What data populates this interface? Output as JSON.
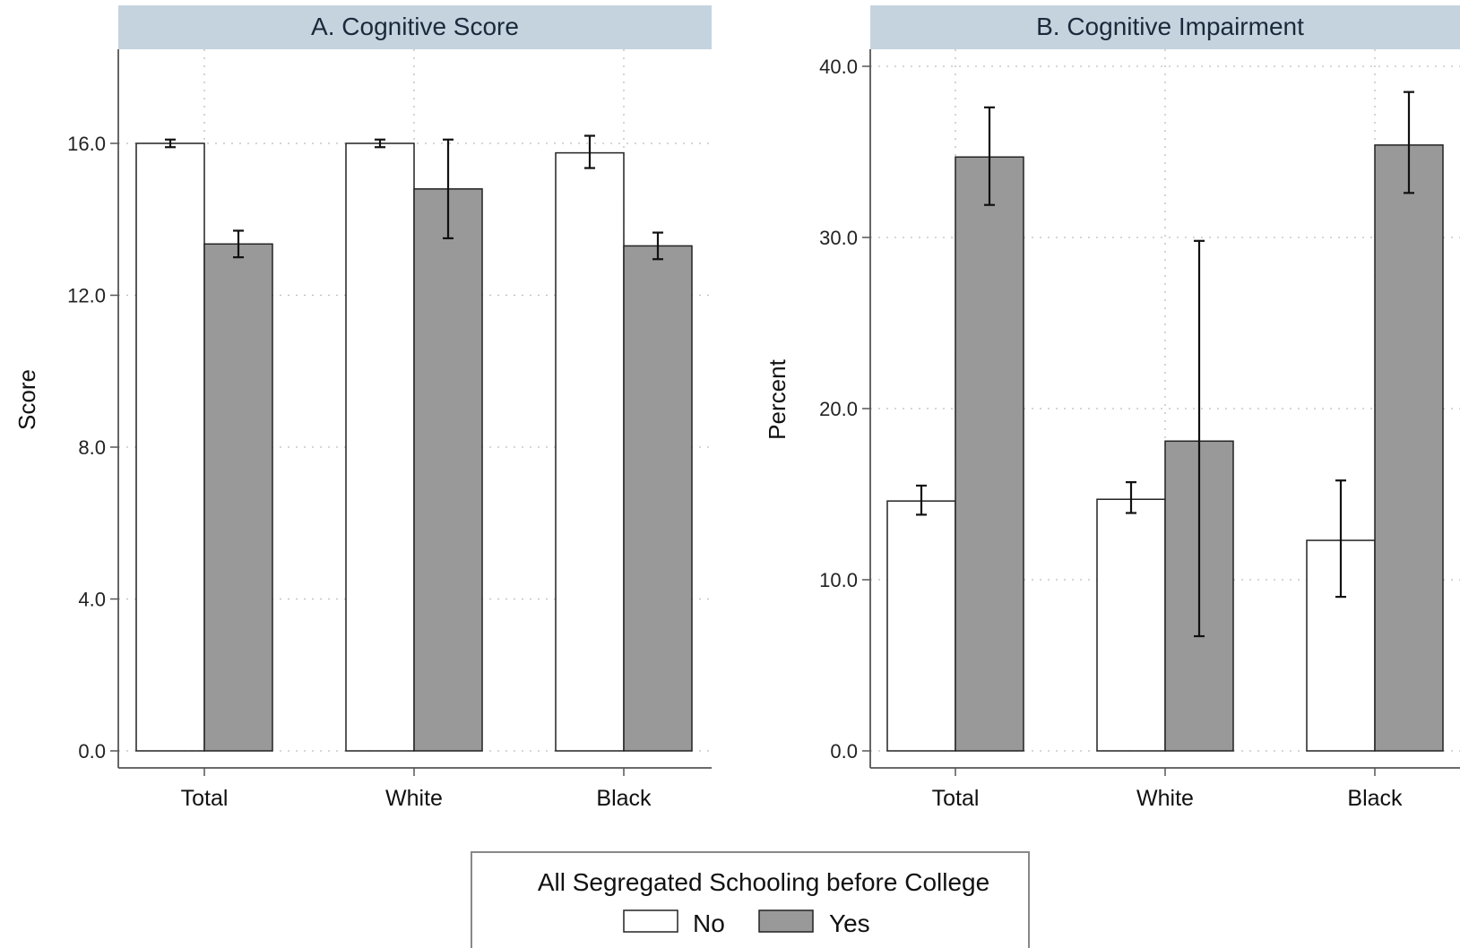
{
  "chart_data": [
    {
      "type": "bar",
      "title": "A. Cognitive Score",
      "ylabel": "Score",
      "xlabel": "",
      "categories": [
        "Total",
        "White",
        "Black"
      ],
      "ylim": [
        0,
        16
      ],
      "yticks": [
        0,
        4,
        8,
        12,
        16
      ],
      "ytick_labels": [
        "0.0",
        "4.0",
        "8.0",
        "12.0",
        "16.0"
      ],
      "grid": true,
      "series": [
        {
          "name": "No",
          "color": "#ffffff",
          "values": [
            16.0,
            16.0,
            15.75
          ],
          "ci_low": [
            15.9,
            15.9,
            15.35
          ],
          "ci_high": [
            16.1,
            16.1,
            16.2
          ]
        },
        {
          "name": "Yes",
          "color": "#999999",
          "values": [
            13.35,
            14.8,
            13.3
          ],
          "ci_low": [
            13.0,
            13.5,
            12.95
          ],
          "ci_high": [
            13.7,
            16.1,
            13.65
          ]
        }
      ]
    },
    {
      "type": "bar",
      "title": "B. Cognitive Impairment",
      "ylabel": "Percent",
      "xlabel": "",
      "categories": [
        "Total",
        "White",
        "Black"
      ],
      "ylim": [
        0,
        40
      ],
      "yticks": [
        0,
        10,
        20,
        30,
        40
      ],
      "ytick_labels": [
        "0.0",
        "10.0",
        "20.0",
        "30.0",
        "40.0"
      ],
      "grid": true,
      "series": [
        {
          "name": "No",
          "color": "#ffffff",
          "values": [
            14.6,
            14.7,
            12.3
          ],
          "ci_low": [
            13.8,
            13.9,
            9.0
          ],
          "ci_high": [
            15.5,
            15.7,
            15.8
          ]
        },
        {
          "name": "Yes",
          "color": "#999999",
          "values": [
            34.7,
            18.1,
            35.4
          ],
          "ci_low": [
            31.9,
            6.7,
            32.6
          ],
          "ci_high": [
            37.6,
            29.8,
            38.5
          ]
        }
      ]
    }
  ],
  "legend": {
    "title": "All Segregated Schooling before College",
    "placement": "bottom-center",
    "items": [
      {
        "label": "No",
        "color": "#ffffff"
      },
      {
        "label": "Yes",
        "color": "#999999"
      }
    ]
  }
}
